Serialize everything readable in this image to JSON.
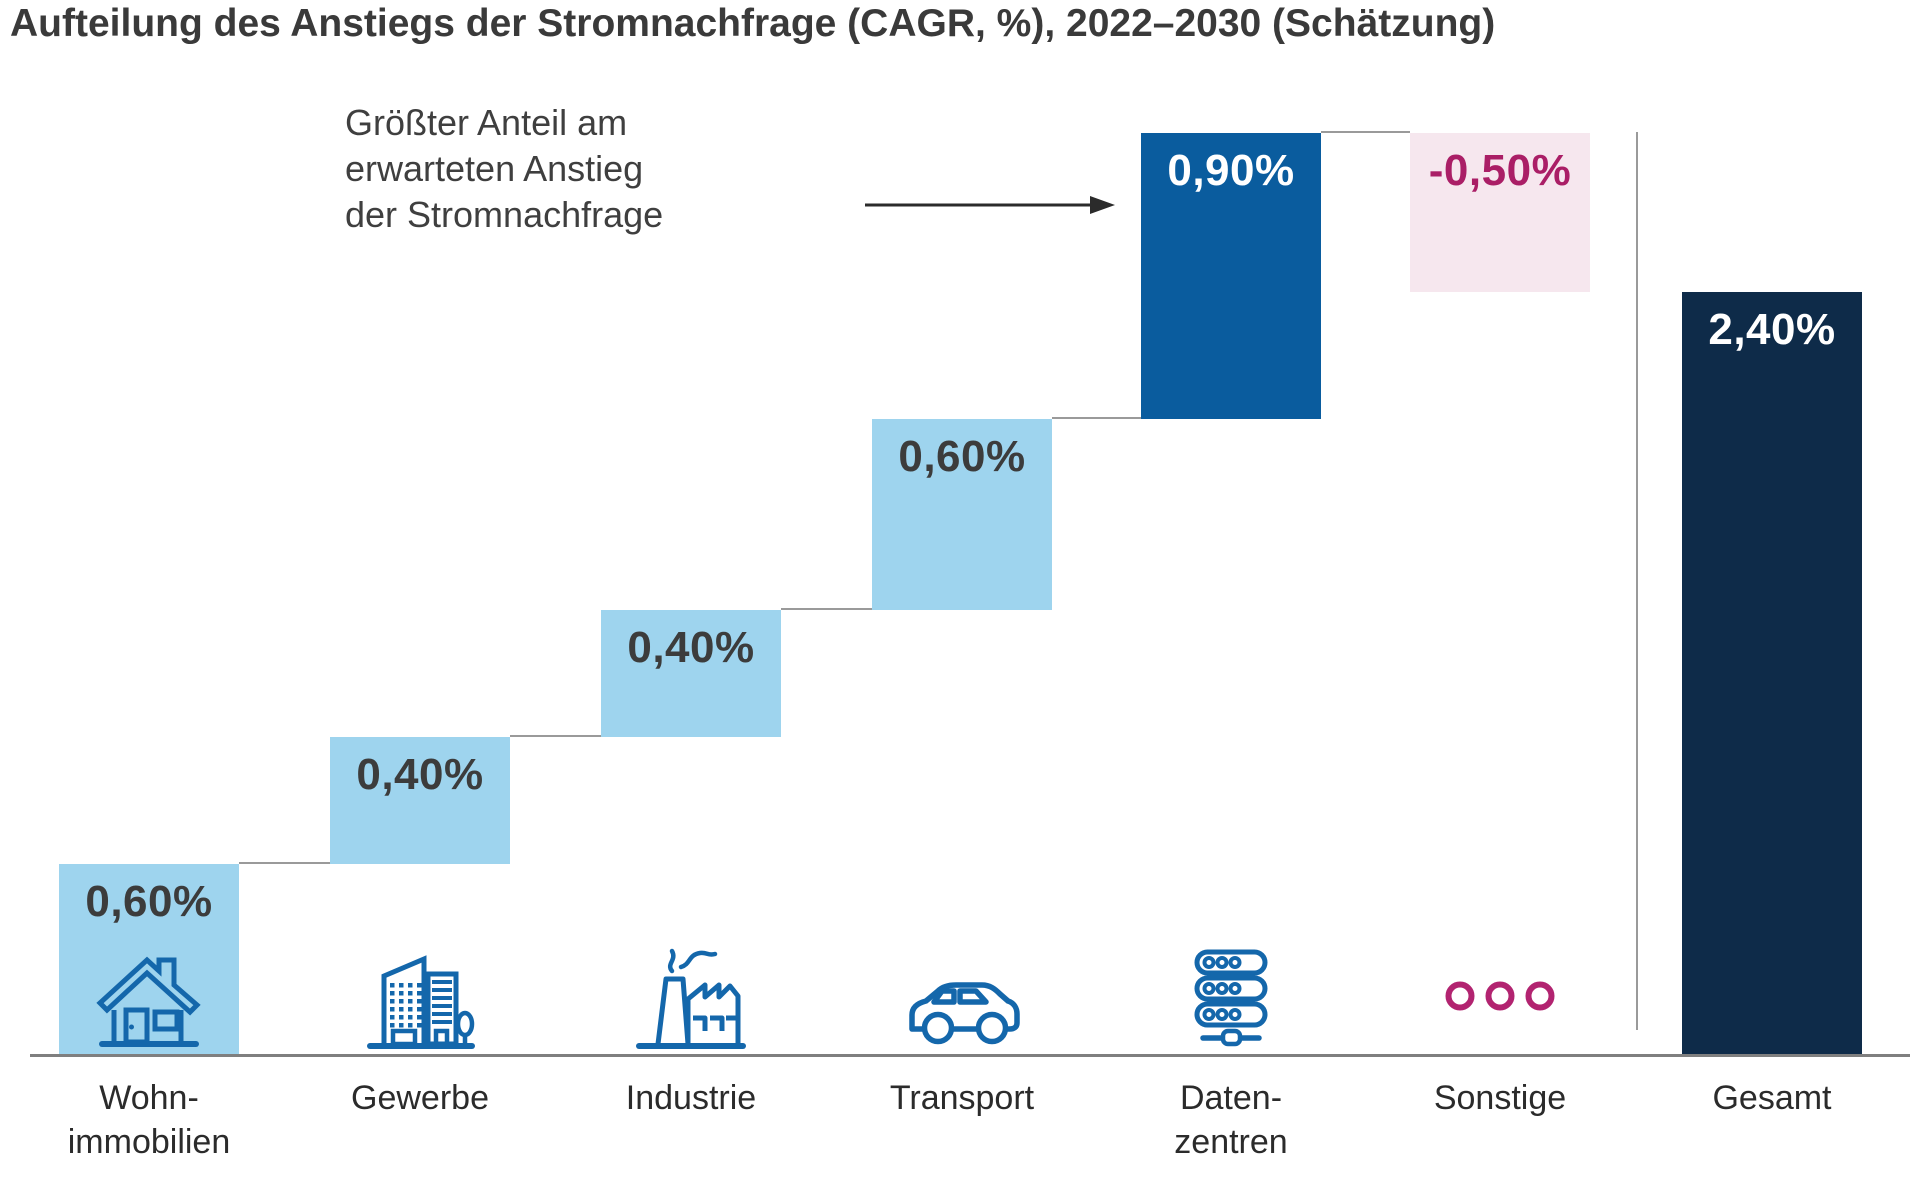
{
  "title": "Aufteilung des Anstiegs der Stromnachfrage (CAGR, %), 2022–2030 (Schätzung)",
  "annotation": {
    "lines": [
      "Größter Anteil am",
      "erwarteten Anstieg",
      "der Stromnachfrage"
    ]
  },
  "chart_data": {
    "type": "bar",
    "subtype": "waterfall",
    "title": "Aufteilung des Anstiegs der Stromnachfrage (CAGR, %), 2022–2030 (Schätzung)",
    "unit": "%",
    "ylim": [
      0,
      2.9
    ],
    "grid": false,
    "legend": false,
    "categories": [
      "Wohnimmobilien",
      "Gewerbe",
      "Industrie",
      "Transport",
      "Datenzentren",
      "Sonstige",
      "Gesamt"
    ],
    "points": [
      {
        "category_lines": [
          "Wohn-",
          "immobilien"
        ],
        "value": 0.6,
        "label": "0,60%",
        "role": "increase",
        "icon": "house-icon"
      },
      {
        "category_lines": [
          "Gewerbe"
        ],
        "value": 0.4,
        "label": "0,40%",
        "role": "increase",
        "icon": "office-building-icon"
      },
      {
        "category_lines": [
          "Industrie"
        ],
        "value": 0.4,
        "label": "0,40%",
        "role": "increase",
        "icon": "factory-icon"
      },
      {
        "category_lines": [
          "Transport"
        ],
        "value": 0.6,
        "label": "0,60%",
        "role": "increase",
        "icon": "car-icon"
      },
      {
        "category_lines": [
          "Daten-",
          "zentren"
        ],
        "value": 0.9,
        "label": "0,90%",
        "role": "increase-highlight",
        "icon": "server-icon"
      },
      {
        "category_lines": [
          "Sonstige"
        ],
        "value": -0.5,
        "label": "-0,50%",
        "role": "decrease",
        "icon": "ellipsis-icon"
      },
      {
        "category_lines": [
          "Gesamt"
        ],
        "value": 2.4,
        "label": "2,40%",
        "role": "total",
        "icon": null
      }
    ],
    "colors": {
      "increase": "#9ed4ee",
      "increase_highlight": "#0a5c9e",
      "decrease_bg": "#f6e7ee",
      "decrease_text": "#aa1e66",
      "total": "#0e2b49",
      "icon_blue": "#1467ab",
      "icon_magenta": "#b22370",
      "value_dark": "#3c3c3c",
      "value_light": "#ffffff"
    }
  }
}
